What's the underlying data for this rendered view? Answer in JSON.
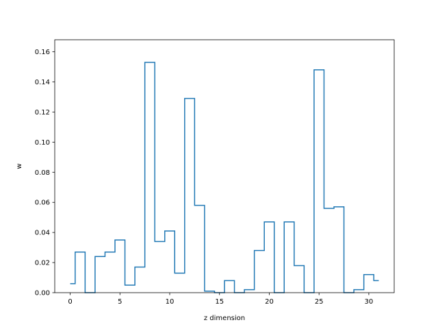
{
  "chart_data": {
    "type": "line",
    "style": "step",
    "title": "",
    "xlabel": "z dimension",
    "ylabel": "w",
    "xlim": [
      -1.55,
      32.55
    ],
    "ylim": [
      0,
      0.168
    ],
    "xticks": [
      0,
      5,
      10,
      15,
      20,
      25,
      30
    ],
    "yticks": [
      0.0,
      0.02,
      0.04,
      0.06,
      0.08,
      0.1,
      0.12,
      0.14,
      0.16
    ],
    "ytick_labels": [
      "0.00",
      "0.02",
      "0.04",
      "0.06",
      "0.08",
      "0.10",
      "0.12",
      "0.14",
      "0.16"
    ],
    "grid": false,
    "series": [
      {
        "color": "#1f77b4",
        "x": [
          0,
          1,
          2,
          3,
          4,
          5,
          6,
          7,
          8,
          9,
          10,
          11,
          12,
          13,
          14,
          15,
          16,
          17,
          18,
          19,
          20,
          21,
          22,
          23,
          24,
          25,
          26,
          27,
          28,
          29,
          30,
          31
        ],
        "values": [
          0.006,
          0.027,
          0.0,
          0.024,
          0.027,
          0.035,
          0.005,
          0.017,
          0.153,
          0.034,
          0.041,
          0.013,
          0.129,
          0.058,
          0.001,
          0.0,
          0.008,
          0.0,
          0.002,
          0.028,
          0.047,
          0.0,
          0.047,
          0.018,
          0.0,
          0.148,
          0.056,
          0.057,
          0.0,
          0.002,
          0.012,
          0.008
        ]
      }
    ]
  }
}
